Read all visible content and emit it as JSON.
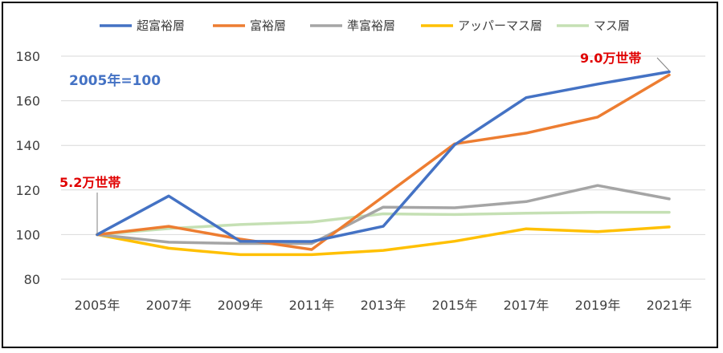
{
  "chart_data": {
    "type": "line",
    "title": "",
    "xlabel": "",
    "ylabel": "",
    "categories": [
      "2005年",
      "2007年",
      "2009年",
      "2011年",
      "2013年",
      "2015年",
      "2017年",
      "2019年",
      "2021年"
    ],
    "ylim": [
      80,
      180
    ],
    "yticks": [
      80,
      100,
      120,
      140,
      160,
      180
    ],
    "grid": true,
    "legend_position": "top",
    "series": [
      {
        "name": "超富裕層",
        "color": "#4472C4",
        "values": [
          100,
          117.3,
          97.0,
          96.9,
          103.7,
          140.3,
          161.4,
          167.5,
          173.0
        ]
      },
      {
        "name": "富裕層",
        "color": "#ED7D31",
        "values": [
          100,
          103.7,
          98.0,
          93.3,
          117.0,
          140.7,
          145.5,
          152.7,
          171.6
        ]
      },
      {
        "name": "準富裕層",
        "color": "#A5A5A5",
        "values": [
          100,
          96.6,
          96.0,
          96.0,
          112.3,
          112.0,
          114.8,
          122.0,
          116.0
        ]
      },
      {
        "name": "アッパーマス層",
        "color": "#FFC000",
        "values": [
          100,
          93.9,
          91.0,
          91.0,
          92.9,
          97.0,
          102.6,
          101.3,
          103.4
        ]
      },
      {
        "name": "マス層",
        "color": "#C5E0B4",
        "values": [
          100,
          102.7,
          104.5,
          105.6,
          109.3,
          109.0,
          109.6,
          110.0,
          110.0
        ]
      }
    ],
    "annotations": {
      "base_note": "2005年=100",
      "start_label": "5.2万世帯",
      "end_label": "9.0万世帯"
    }
  }
}
